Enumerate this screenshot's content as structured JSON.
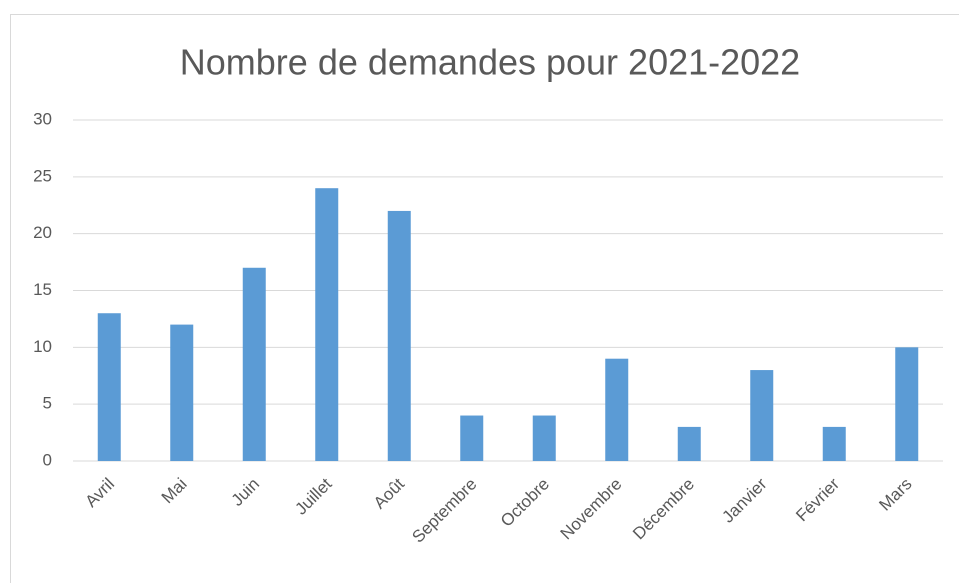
{
  "chart_data": {
    "type": "bar",
    "title": "Nombre de demandes pour 2021-2022",
    "categories": [
      "Avril",
      "Mai",
      "Juin",
      "Juillet",
      "Août",
      "Septembre",
      "Octobre",
      "Novembre",
      "Décembre",
      "Janvier",
      "Février",
      "Mars"
    ],
    "values": [
      13,
      12,
      17,
      24,
      22,
      4,
      4,
      9,
      3,
      8,
      3,
      10
    ],
    "color": "#5b9bd5",
    "ylim": [
      0,
      30
    ],
    "yticks": [
      0,
      5,
      10,
      15,
      20,
      25,
      30
    ],
    "grid": true
  }
}
